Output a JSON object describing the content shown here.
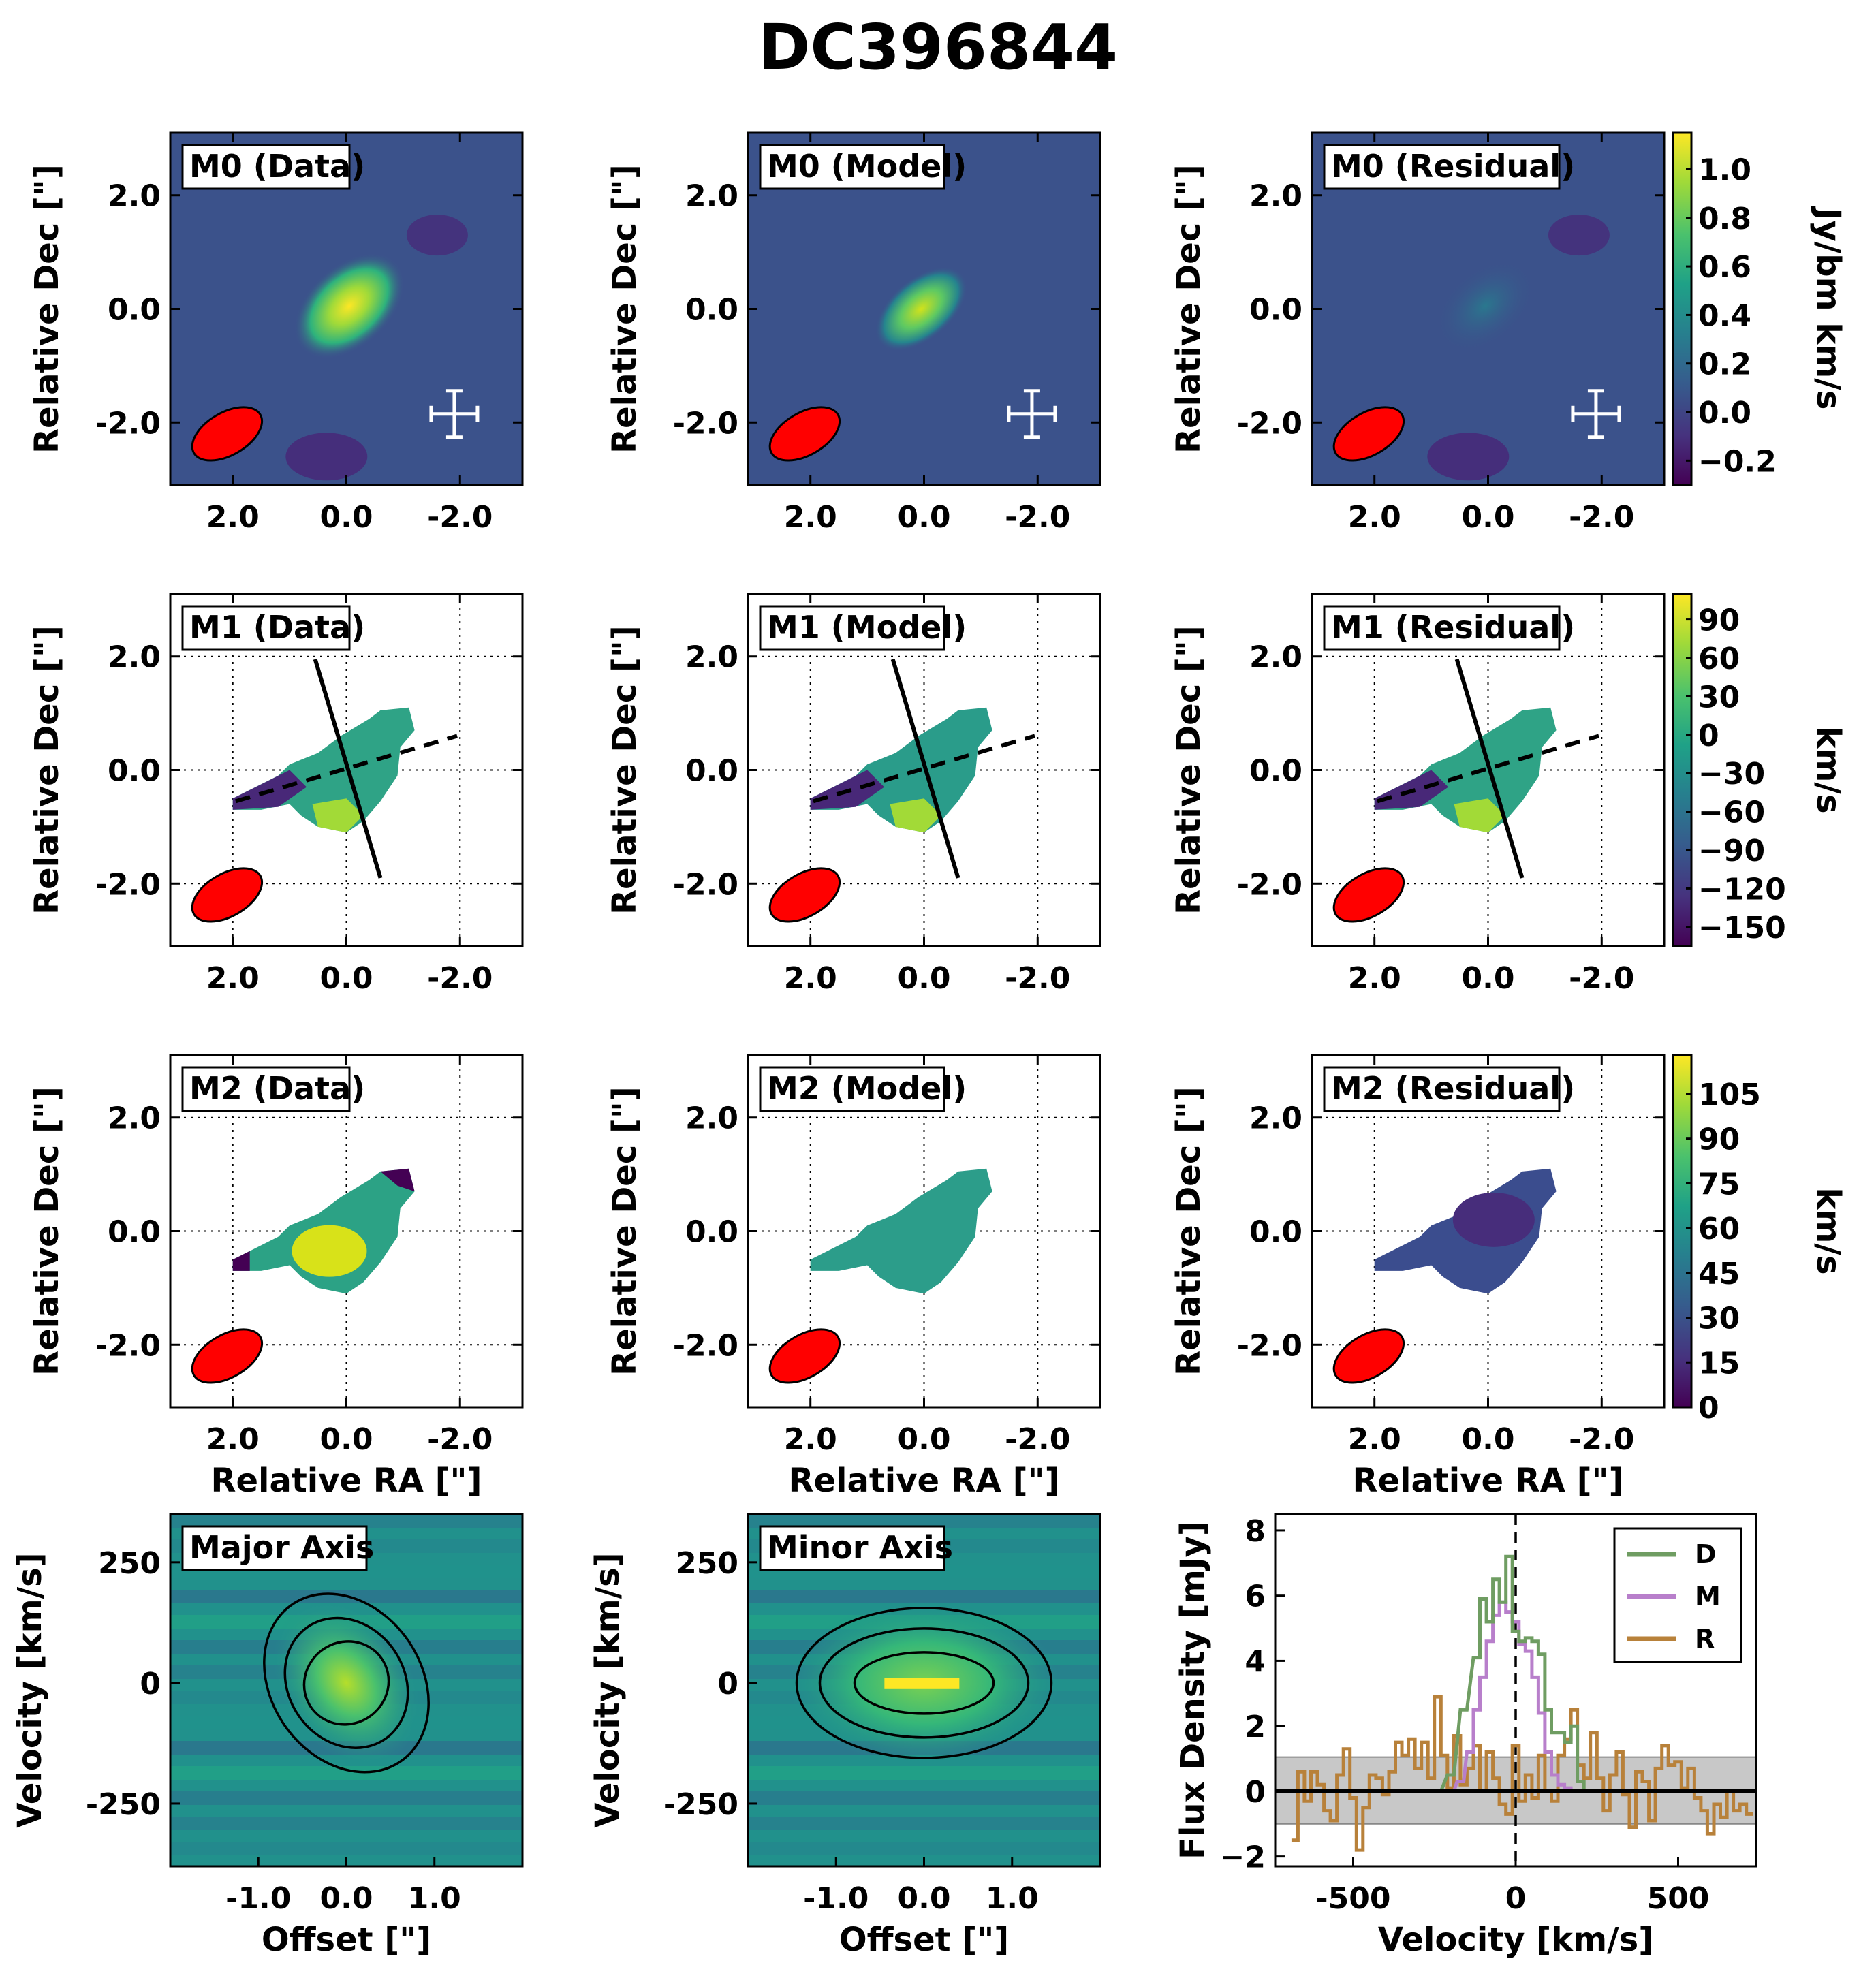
{
  "figure": {
    "title": "DC396844",
    "colors": {
      "beam": "#ff0000",
      "panel_bg": "#3b528b",
      "cross": "#ffffff"
    }
  },
  "chart_data": [
    {
      "type": "heatmap",
      "group": "moment_maps",
      "panels": [
        {
          "row": 0,
          "label": "M0 (Data)"
        },
        {
          "row": 0,
          "label": "M0 (Model)"
        },
        {
          "row": 0,
          "label": "M0 (Residual)"
        },
        {
          "row": 1,
          "label": "M1 (Data)"
        },
        {
          "row": 1,
          "label": "M1 (Model)"
        },
        {
          "row": 1,
          "label": "M1 (Residual)"
        },
        {
          "row": 2,
          "label": "M2 (Data)"
        },
        {
          "row": 2,
          "label": "M2 (Model)"
        },
        {
          "row": 2,
          "label": "M2 (Residual)"
        }
      ],
      "xlabel": "Relative RA [\"]",
      "ylabel": "Relative Dec [\"]",
      "xlim": [
        3.1,
        -3.1
      ],
      "ylim": [
        -3.1,
        3.1
      ],
      "xticks": [
        "2.0",
        "0.0",
        "-2.0"
      ],
      "yticks": [
        "2.0",
        "0.0",
        "-2.0"
      ],
      "grid_rows": [
        1,
        2
      ],
      "beam_ellipse": {
        "center": [
          2.1,
          -2.2
        ],
        "major_arcsec": 1.35,
        "minor_arcsec": 0.75,
        "pa_deg": 60
      },
      "major_axis_line": {
        "from": [
          0.55,
          1.95
        ],
        "to": [
          -0.6,
          -1.9
        ]
      },
      "minor_axis_line": {
        "from": [
          1.95,
          -0.55
        ],
        "to": [
          -1.95,
          0.6
        ]
      },
      "colorbars": [
        {
          "row": 0,
          "label": "Jy/bm km/s",
          "ticks": [
            "1.0",
            "0.8",
            "0.6",
            "0.4",
            "0.2",
            "0.0",
            "−0.2"
          ],
          "range": [
            -0.3,
            1.15
          ]
        },
        {
          "row": 1,
          "label": "km/s",
          "ticks": [
            "90",
            "60",
            "30",
            "0",
            "−30",
            "−60",
            "−90",
            "−120",
            "−150"
          ],
          "range": [
            -165,
            110
          ]
        },
        {
          "row": 2,
          "label": "km/s",
          "ticks": [
            "105",
            "90",
            "75",
            "60",
            "45",
            "30",
            "15",
            "0"
          ],
          "range": [
            0,
            118
          ]
        }
      ]
    },
    {
      "type": "heatmap",
      "group": "pv_diagrams",
      "panels": [
        {
          "label": "Major Axis"
        },
        {
          "label": "Minor Axis"
        }
      ],
      "xlabel": "Offset [\"]",
      "ylabel": "Velocity [km/s]",
      "xlim": [
        -2.0,
        2.0
      ],
      "ylim": [
        -380,
        350
      ],
      "xticks": [
        "-1.0",
        "0.0",
        "1.0"
      ],
      "yticks": [
        "250",
        "0",
        "-250"
      ]
    },
    {
      "type": "line",
      "group": "spectrum",
      "xlabel": "Velocity [km/s]",
      "ylabel": "Flux Density [mJy]",
      "xlim": [
        -740,
        740
      ],
      "ylim": [
        -2.3,
        8.5
      ],
      "xticks": [
        "-500",
        "0",
        "500"
      ],
      "yticks": [
        "8",
        "6",
        "4",
        "2",
        "0",
        "−2"
      ],
      "noise_band": [
        -1.0,
        1.05
      ],
      "legend_position": "top-right",
      "series": [
        {
          "name": "D",
          "color": "#6f9d62",
          "x": [
            -240,
            -200,
            -160,
            -120,
            -100,
            -80,
            -60,
            -40,
            -20,
            0,
            20,
            40,
            60,
            80,
            100,
            120,
            140,
            160,
            180,
            200,
            220,
            240
          ],
          "y": [
            0.0,
            0.5,
            2.5,
            4.1,
            5.9,
            5.2,
            6.5,
            5.8,
            7.2,
            4.9,
            4.6,
            4.7,
            4.6,
            4.2,
            2.5,
            1.8,
            1.8,
            1.5,
            2.0,
            0.3,
            0.0,
            0.0
          ]
        },
        {
          "name": "M",
          "color": "#b87fcb",
          "x": [
            -200,
            -170,
            -140,
            -120,
            -100,
            -80,
            -60,
            -40,
            -20,
            0,
            20,
            40,
            60,
            80,
            100,
            120,
            140,
            160,
            180,
            200
          ],
          "y": [
            0.0,
            0.3,
            1.2,
            2.5,
            3.5,
            4.6,
            5.4,
            5.8,
            5.5,
            5.2,
            4.5,
            4.3,
            3.5,
            2.4,
            1.2,
            0.5,
            0.2,
            0.1,
            0.0,
            0.0
          ]
        },
        {
          "name": "R",
          "color": "#b8813a",
          "x": [
            -680,
            -660,
            -640,
            -620,
            -600,
            -580,
            -560,
            -540,
            -520,
            -500,
            -480,
            -460,
            -440,
            -420,
            -400,
            -380,
            -360,
            -340,
            -320,
            -300,
            -280,
            -260,
            -240,
            -220,
            -200,
            -180,
            -160,
            -140,
            -120,
            -100,
            -80,
            -60,
            -40,
            -20,
            0,
            20,
            40,
            60,
            80,
            100,
            120,
            140,
            160,
            180,
            200,
            220,
            240,
            260,
            280,
            300,
            320,
            340,
            360,
            380,
            400,
            420,
            440,
            460,
            480,
            500,
            520,
            540,
            560,
            580,
            600,
            620,
            640,
            660,
            680,
            700,
            720
          ],
          "y": [
            -1.5,
            0.6,
            -0.3,
            0.6,
            0.2,
            -0.6,
            -0.9,
            0.5,
            1.3,
            -0.2,
            -1.8,
            -0.5,
            0.5,
            0.4,
            -0.1,
            0.6,
            1.5,
            1.1,
            1.6,
            0.7,
            1.5,
            0.4,
            2.9,
            1.1,
            0.1,
            1.7,
            0.2,
            0.7,
            1.4,
            0.0,
            1.2,
            0.4,
            -0.4,
            -0.7,
            1.4,
            -0.3,
            0.5,
            -0.2,
            1.1,
            0.0,
            -0.3,
            1.1,
            1.6,
            2.5,
            0.8,
            0.4,
            1.8,
            0.4,
            -0.6,
            0.5,
            1.2,
            -0.1,
            -1.1,
            0.6,
            0.3,
            -0.9,
            0.7,
            1.4,
            0.8,
            0.9,
            0.1,
            0.7,
            -0.2,
            -0.6,
            -1.3,
            -0.4,
            -0.8,
            0.0,
            -0.6,
            -0.4,
            -0.7
          ]
        }
      ]
    }
  ]
}
